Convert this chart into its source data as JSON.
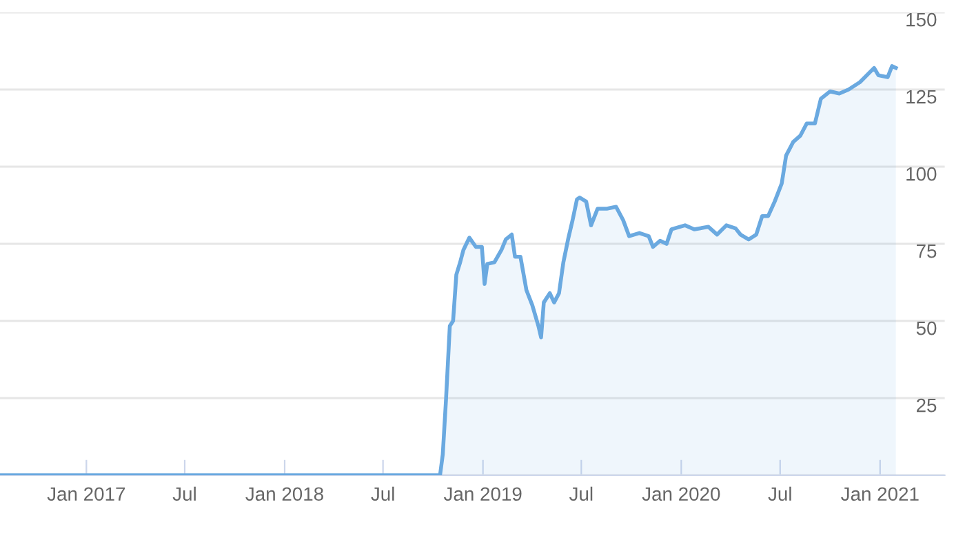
{
  "chart_data": {
    "type": "area",
    "x": [
      "2016-07-26",
      "2018-10-14",
      "2018-10-19",
      "2018-10-25",
      "2018-11-01",
      "2018-11-07",
      "2018-11-13",
      "2018-11-20",
      "2018-11-26",
      "2018-12-07",
      "2018-12-19",
      "2018-12-30",
      "2019-01-04",
      "2019-01-09",
      "2019-01-22",
      "2019-02-04",
      "2019-02-12",
      "2019-02-23",
      "2019-03-01",
      "2019-03-11",
      "2019-03-22",
      "2019-04-02",
      "2019-04-13",
      "2019-04-18",
      "2019-04-23",
      "2019-05-04",
      "2019-05-12",
      "2019-05-21",
      "2019-05-29",
      "2019-06-07",
      "2019-06-15",
      "2019-06-23",
      "2019-06-28",
      "2019-07-10",
      "2019-07-19",
      "2019-07-31",
      "2019-08-17",
      "2019-09-03",
      "2019-09-16",
      "2019-09-27",
      "2019-10-16",
      "2019-11-02",
      "2019-11-10",
      "2019-11-23",
      "2019-12-05",
      "2019-12-14",
      "2020-01-08",
      "2020-01-25",
      "2020-02-20",
      "2020-03-07",
      "2020-03-24",
      "2020-04-10",
      "2020-04-19",
      "2020-05-04",
      "2020-05-18",
      "2020-05-29",
      "2020-06-09",
      "2020-06-21",
      "2020-07-04",
      "2020-07-12",
      "2020-07-25",
      "2020-08-07",
      "2020-08-19",
      "2020-09-03",
      "2020-09-14",
      "2020-10-01",
      "2020-10-18",
      "2020-11-04",
      "2020-11-25",
      "2020-12-21",
      "2020-12-29",
      "2021-01-15",
      "2021-01-23",
      "2021-01-30"
    ],
    "series": [
      {
        "color": "#6aa9e0",
        "values": [
          0,
          0,
          6.7,
          24.6,
          48.4,
          50,
          65,
          69,
          73,
          77,
          74,
          74,
          62,
          68.5,
          69,
          73,
          76.4,
          78,
          70.8,
          70.8,
          60,
          55,
          48.4,
          44.7,
          56,
          59,
          56,
          59,
          69,
          76.7,
          82.7,
          89.4,
          90,
          88.7,
          81,
          86.4,
          86.4,
          87,
          82.7,
          77.5,
          78.5,
          77.5,
          74,
          76,
          75,
          79.7,
          81,
          79.7,
          80.5,
          78,
          81,
          80,
          78,
          76.4,
          78,
          84,
          84,
          88.7,
          94.6,
          103.6,
          108,
          110,
          114,
          114,
          122,
          124.4,
          123.7,
          125,
          127.4,
          132,
          129.6,
          129,
          132.6,
          132
        ]
      }
    ],
    "xlim": [
      "2016-07-26",
      "2021-04-30"
    ],
    "xticks": [
      {
        "value": "2017-01-01",
        "label": "Jan 2017"
      },
      {
        "value": "2017-07-01",
        "label": "Jul"
      },
      {
        "value": "2018-01-01",
        "label": "Jan 2018"
      },
      {
        "value": "2018-07-01",
        "label": "Jul"
      },
      {
        "value": "2019-01-01",
        "label": "Jan 2019"
      },
      {
        "value": "2019-07-01",
        "label": "Jul"
      },
      {
        "value": "2020-01-01",
        "label": "Jan 2020"
      },
      {
        "value": "2020-07-01",
        "label": "Jul"
      },
      {
        "value": "2021-01-01",
        "label": "Jan 2021"
      }
    ],
    "ylim": [
      0,
      150
    ],
    "yticks": [
      {
        "value": 0,
        "label": null
      },
      25,
      50,
      75,
      100,
      125,
      150
    ],
    "grid": "y",
    "legend": false
  }
}
